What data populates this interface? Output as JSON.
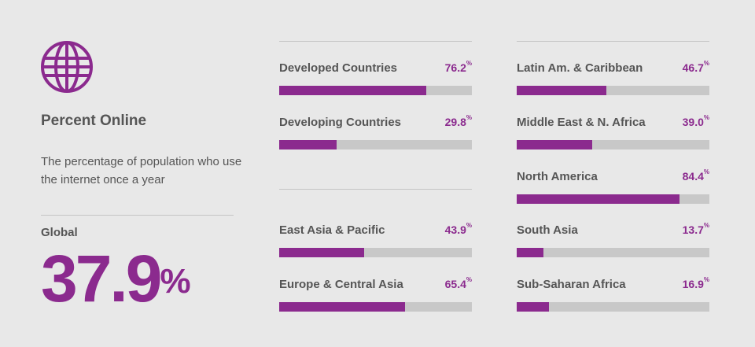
{
  "heading": {
    "title": "Percent Online",
    "description": "The percentage of population who use the internet once a year",
    "global_label": "Global",
    "global_value": "37.9",
    "global_unit": "%"
  },
  "colors": {
    "accent": "#8b2a8e",
    "track": "#c8c8c8",
    "text": "#555555",
    "background": "#e8e8e8"
  },
  "icon": "globe-icon",
  "chart_data": {
    "type": "bar",
    "unit": "%",
    "xlim": [
      0,
      100
    ],
    "categories": [
      "Developed Countries",
      "Developing Countries",
      "East Asia & Pacific",
      "Europe & Central Asia",
      "Latin Am. & Caribbean",
      "Middle East & N. Africa",
      "North America",
      "South Asia",
      "Sub-Saharan Africa"
    ],
    "values": [
      76.2,
      29.8,
      43.9,
      65.4,
      46.7,
      39.0,
      84.4,
      13.7,
      16.9
    ],
    "labels": [
      "76.2",
      "29.8",
      "43.9",
      "65.4",
      "46.7",
      "39.0",
      "84.4",
      "13.7",
      "16.9"
    ]
  }
}
